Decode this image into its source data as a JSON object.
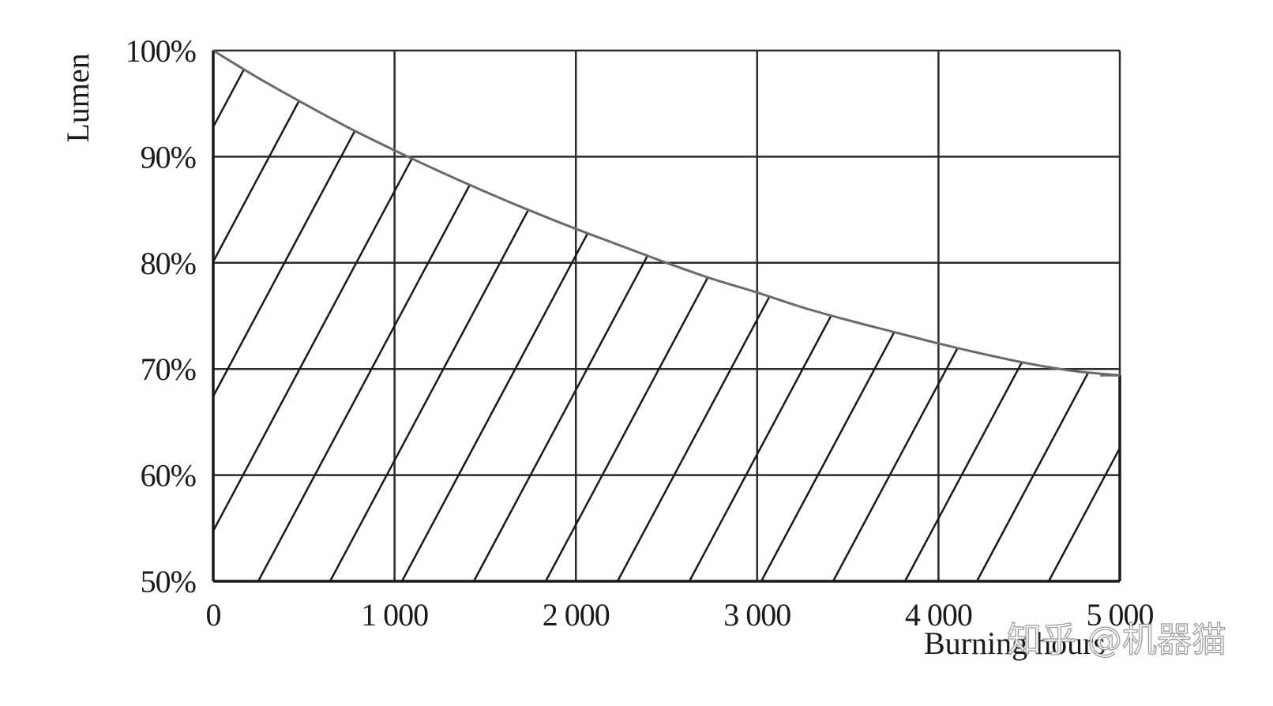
{
  "watermark": "知乎 @机器猫",
  "chart_data": {
    "type": "area",
    "title": "",
    "xlabel": "Burning hours",
    "ylabel": "Lumen",
    "xlim": [
      0,
      5000
    ],
    "ylim": [
      50,
      100
    ],
    "x_ticks": [
      0,
      1000,
      2000,
      3000,
      4000,
      5000
    ],
    "x_tick_labels": [
      "0",
      "1 000",
      "2 000",
      "3 000",
      "4 000",
      "5 000"
    ],
    "y_ticks": [
      50,
      60,
      70,
      80,
      90,
      100
    ],
    "y_tick_labels": [
      "50%",
      "60%",
      "70%",
      "80%",
      "90%",
      "100%"
    ],
    "grid": true,
    "fill_pattern": "diagonal-hatch",
    "series": [
      {
        "x": [
          0,
          250,
          500,
          750,
          1000,
          1250,
          1500,
          1750,
          2000,
          2250,
          2500,
          2750,
          3000,
          3250,
          3500,
          3750,
          4000,
          4250,
          4500,
          4750,
          5000
        ],
        "values": [
          100,
          97.4,
          95.0,
          92.7,
          90.6,
          88.6,
          86.7,
          84.9,
          83.2,
          81.6,
          80.0,
          78.5,
          77.2,
          75.8,
          74.6,
          73.5,
          72.4,
          71.4,
          70.5,
          69.8,
          69.4
        ]
      }
    ]
  }
}
